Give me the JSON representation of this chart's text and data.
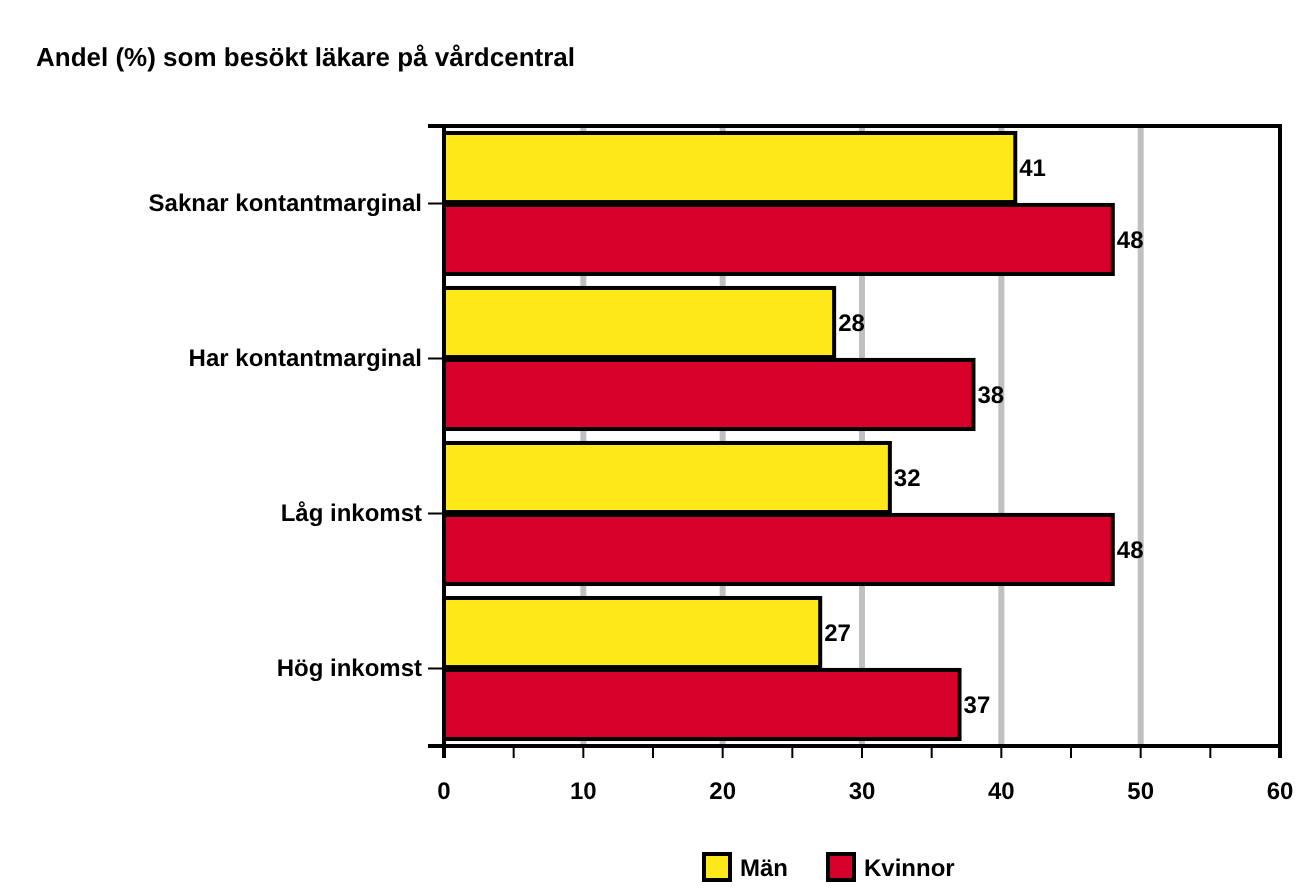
{
  "chart_data": {
    "type": "bar",
    "orientation": "horizontal",
    "title": "Andel (%) som besökt läkare på vårdcentral",
    "categories": [
      "Saknar kontantmarginal",
      "Har kontantmarginal",
      "Låg inkomst",
      "Hög inkomst"
    ],
    "series": [
      {
        "name": "Män",
        "color": "#ffe81a",
        "values": [
          41,
          28,
          32,
          27
        ]
      },
      {
        "name": "Kvinnor",
        "color": "#d6002b",
        "values": [
          48,
          38,
          48,
          37
        ]
      }
    ],
    "xlim": [
      0,
      60
    ],
    "xticks": [
      0,
      {
        "value": 5,
        "label": null
      },
      10,
      {
        "value": 15,
        "label": null
      },
      20,
      {
        "value": 25,
        "label": null
      },
      30,
      {
        "value": 35,
        "label": null
      },
      40,
      {
        "value": 45,
        "label": null
      },
      50,
      {
        "value": 55,
        "label": null
      },
      60
    ],
    "grid": "x",
    "legend": "bottom",
    "data_labels": true
  }
}
